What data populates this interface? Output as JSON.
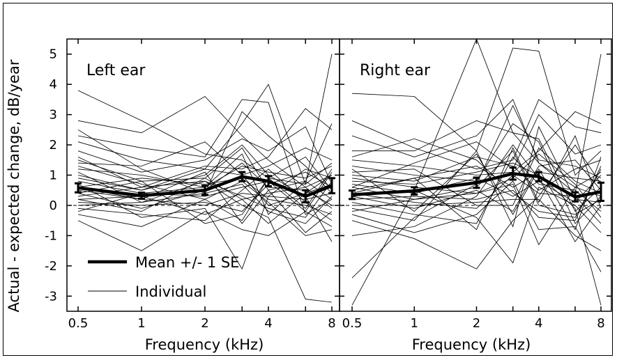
{
  "chart_data": {
    "type": "line",
    "ylabel": "Actual - expected change, dB/year",
    "xlabel": "Frequency (kHz)",
    "x": [
      0.5,
      1,
      2,
      3,
      4,
      6,
      8
    ],
    "xticks": [
      0.5,
      1,
      2,
      4,
      8
    ],
    "xtick_labels": [
      "0.5",
      "1",
      "2",
      "4",
      "8"
    ],
    "xscale": "log",
    "ylim": [
      -3.5,
      5.5
    ],
    "yticks": [
      -3,
      -2,
      -1,
      0,
      1,
      2,
      3,
      4,
      5
    ],
    "ytick_labels": [
      "-3",
      "-2",
      "-1",
      "0",
      "1",
      "2",
      "3",
      "4",
      "5"
    ],
    "reference_line": 0,
    "legend": {
      "placement": "bottom-left",
      "mean_label": "Mean +/- 1 SE",
      "individual_label": "Individual"
    },
    "panels": [
      {
        "title": "Left ear",
        "mean": [
          0.58,
          0.32,
          0.5,
          0.95,
          0.8,
          0.3,
          0.65
        ],
        "se": [
          0.15,
          0.1,
          0.15,
          0.15,
          0.17,
          0.2,
          0.25
        ],
        "individuals": [
          [
            3.8,
            2.8,
            1.7,
            1.5,
            0.9,
            0.7,
            1.4
          ],
          [
            2.8,
            2.4,
            3.6,
            2.3,
            1.5,
            0.6,
            1.0
          ],
          [
            2.3,
            1.9,
            1.6,
            3.5,
            3.4,
            -0.3,
            0.2
          ],
          [
            2.1,
            1.5,
            1.2,
            2.7,
            4.0,
            0.7,
            5.0
          ],
          [
            1.8,
            1.1,
            1.5,
            2.2,
            1.8,
            2.6,
            0.7
          ],
          [
            1.5,
            0.8,
            0.9,
            1.9,
            0.5,
            0.8,
            0.2
          ],
          [
            1.2,
            1.0,
            0.6,
            1.3,
            1.1,
            0.9,
            1.3
          ],
          [
            1.0,
            0.5,
            1.2,
            1.0,
            0.0,
            0.4,
            1.0
          ],
          [
            0.8,
            0.4,
            0.3,
            0.6,
            0.8,
            -0.2,
            1.1
          ],
          [
            0.6,
            0.9,
            0.7,
            0.9,
            0.2,
            0.0,
            -0.3
          ],
          [
            0.5,
            0.2,
            0.0,
            0.4,
            0.3,
            0.2,
            0.4
          ],
          [
            0.4,
            -0.1,
            0.5,
            1.4,
            0.6,
            0.5,
            0.0
          ],
          [
            0.3,
            0.6,
            0.8,
            0.3,
            -0.1,
            -0.4,
            0.8
          ],
          [
            0.2,
            0.3,
            -0.3,
            0.2,
            0.4,
            0.6,
            -0.1
          ],
          [
            0.1,
            0.0,
            0.1,
            -0.2,
            0.7,
            1.1,
            0.6
          ],
          [
            0.0,
            0.1,
            0.4,
            0.7,
            -0.2,
            -0.6,
            0.3
          ],
          [
            -0.1,
            -0.3,
            -0.5,
            0.5,
            1.2,
            0.1,
            -0.5
          ],
          [
            -0.3,
            -0.7,
            0.2,
            -0.5,
            0.9,
            1.6,
            0.5
          ],
          [
            -0.5,
            -1.5,
            -0.2,
            -0.8,
            -1.0,
            -0.2,
            -0.7
          ],
          [
            1.3,
            0.7,
            0.2,
            0.8,
            0.1,
            -1.0,
            -0.8
          ],
          [
            0.9,
            0.5,
            1.0,
            2.0,
            1.0,
            0.3,
            -1.2
          ],
          [
            0.7,
            -0.4,
            -0.1,
            -2.1,
            0.3,
            1.2,
            0.9
          ],
          [
            1.1,
            0.1,
            0.8,
            0.0,
            -0.4,
            -3.1,
            -3.2
          ],
          [
            2.5,
            1.2,
            0.4,
            3.1,
            2.3,
            1.3,
            0.4
          ],
          [
            1.6,
            0.6,
            1.3,
            1.2,
            1.6,
            3.2,
            2.5
          ],
          [
            0.4,
            0.8,
            -0.6,
            -0.3,
            0.9,
            -0.1,
            1.2
          ],
          [
            0.2,
            -0.2,
            0.9,
            0.2,
            -0.6,
            0.4,
            0.7
          ],
          [
            -0.2,
            0.4,
            0.6,
            1.7,
            -0.3,
            0.8,
            2.7
          ],
          [
            0.6,
            0.2,
            1.1,
            -0.6,
            0.5,
            -0.9,
            -0.2
          ],
          [
            1.4,
            1.3,
            2.1,
            1.0,
            1.3,
            1.9,
            1.5
          ]
        ]
      },
      {
        "title": "Right ear",
        "mean": [
          0.35,
          0.48,
          0.75,
          1.05,
          0.95,
          0.28,
          0.45
        ],
        "se": [
          0.14,
          0.12,
          0.17,
          0.2,
          0.15,
          0.15,
          0.3
        ],
        "individuals": [
          [
            -3.3,
            0.5,
            5.5,
            2.4,
            2.2,
            -0.2,
            0.6
          ],
          [
            3.7,
            3.6,
            1.8,
            5.2,
            5.1,
            1.0,
            1.8
          ],
          [
            2.8,
            1.9,
            1.2,
            1.5,
            3.5,
            2.6,
            2.4
          ],
          [
            2.3,
            1.6,
            2.3,
            3.5,
            1.4,
            0.4,
            5.0
          ],
          [
            1.8,
            1.8,
            2.8,
            2.4,
            1.4,
            0.6,
            1.1
          ],
          [
            1.5,
            1.3,
            1.0,
            1.1,
            1.8,
            3.1,
            2.7
          ],
          [
            1.3,
            1.0,
            0.8,
            2.7,
            2.1,
            -0.6,
            0.3
          ],
          [
            1.0,
            0.8,
            1.6,
            1.3,
            0.5,
            1.2,
            1.5
          ],
          [
            0.9,
            0.6,
            0.4,
            0.9,
            1.7,
            0.7,
            -0.4
          ],
          [
            0.7,
            0.4,
            0.9,
            0.3,
            0.8,
            0.1,
            1.0
          ],
          [
            0.6,
            0.2,
            0.6,
            1.8,
            0.0,
            -0.3,
            0.2
          ],
          [
            0.5,
            0.9,
            1.3,
            0.6,
            1.1,
            0.9,
            0.8
          ],
          [
            0.4,
            0.1,
            -0.1,
            1.0,
            0.4,
            0.3,
            -0.6
          ],
          [
            0.3,
            -0.1,
            0.5,
            -0.2,
            1.3,
            1.5,
            0.5
          ],
          [
            0.2,
            0.3,
            0.2,
            0.5,
            -0.4,
            -0.5,
            1.3
          ],
          [
            0.1,
            -0.3,
            -0.6,
            1.6,
            0.7,
            0.5,
            -0.2
          ],
          [
            0.0,
            0.0,
            0.1,
            0.2,
            0.2,
            -1.0,
            -1.5
          ],
          [
            -0.1,
            -0.5,
            1.8,
            -0.7,
            2.6,
            0.2,
            0.1
          ],
          [
            -0.3,
            -0.9,
            -0.3,
            0.8,
            -0.8,
            -0.7,
            -2.2
          ],
          [
            -0.5,
            -1.1,
            -2.1,
            -0.5,
            0.3,
            2.0,
            0.7
          ],
          [
            -1.0,
            -0.7,
            0.3,
            2.0,
            0.9,
            -1.2,
            0.0
          ],
          [
            1.1,
            1.2,
            0.0,
            0.0,
            1.9,
            0.8,
            0.4
          ],
          [
            0.8,
            0.7,
            1.1,
            1.4,
            1.0,
            -0.1,
            -3.3
          ],
          [
            -2.4,
            -0.4,
            0.7,
            3.3,
            1.5,
            1.3,
            0.9
          ],
          [
            1.6,
            2.2,
            1.5,
            0.4,
            -0.2,
            -0.4,
            1.2
          ],
          [
            0.3,
            0.5,
            -0.4,
            -1.9,
            0.6,
            0.0,
            -0.9
          ],
          [
            0.6,
            1.4,
            2.1,
            1.2,
            3.0,
            1.7,
            2.0
          ],
          [
            -0.2,
            0.2,
            0.4,
            0.7,
            -1.3,
            0.6,
            0.3
          ],
          [
            1.2,
            -0.2,
            1.7,
            -0.3,
            1.2,
            -0.8,
            1.6
          ],
          [
            0.4,
            0.9,
            -0.8,
            1.9,
            0.1,
            2.3,
            -0.1
          ]
        ]
      }
    ]
  }
}
